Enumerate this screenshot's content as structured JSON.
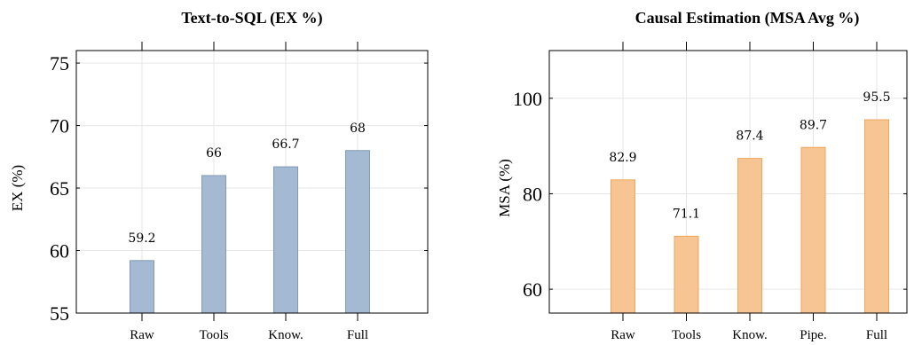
{
  "chart_data": [
    {
      "type": "bar",
      "title": "Text-to-SQL (EX %)",
      "xlabel": "",
      "ylabel": "EX (%)",
      "categories": [
        "Raw",
        "Tools",
        "Know.",
        "Full"
      ],
      "values": [
        59.2,
        66,
        66.7,
        68
      ],
      "value_labels": [
        "59.2",
        "66",
        "66.7",
        "68"
      ],
      "ylim": [
        55,
        76
      ],
      "yticks": [
        55,
        60,
        65,
        70,
        75
      ],
      "grid": true,
      "colors": {
        "fill": "#a4bad2",
        "stroke": "#7f99b6"
      }
    },
    {
      "type": "bar",
      "title": "Causal Estimation (MSA Avg %)",
      "xlabel": "",
      "ylabel": "MSA (%)",
      "categories": [
        "Raw",
        "Tools",
        "Know.",
        "Pipe.",
        "Full"
      ],
      "values": [
        82.9,
        71.1,
        87.4,
        89.7,
        95.5
      ],
      "value_labels": [
        "82.9",
        "71.1",
        "87.4",
        "89.7",
        "95.5"
      ],
      "ylim": [
        55,
        110
      ],
      "yticks": [
        60,
        80,
        100
      ],
      "grid": true,
      "colors": {
        "fill": "#f7c594",
        "stroke": "#eea55c"
      }
    }
  ]
}
